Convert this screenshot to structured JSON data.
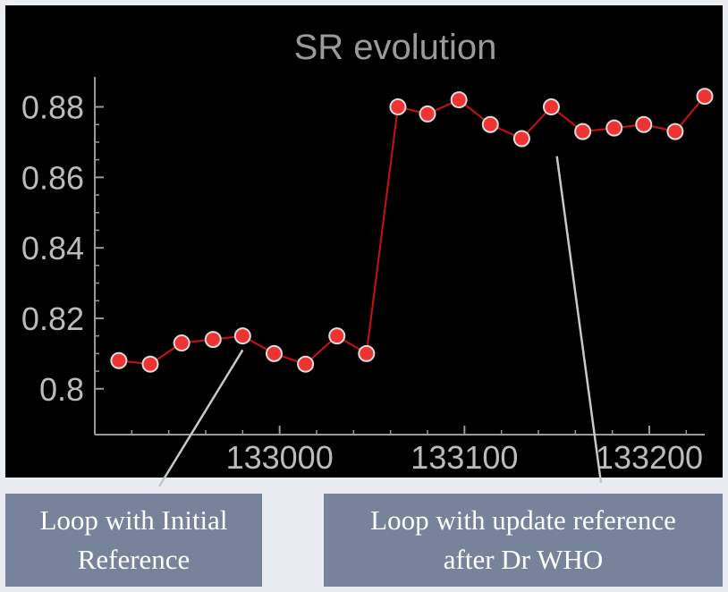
{
  "chart_data": {
    "type": "line",
    "title": "SR evolution",
    "xlabel": "",
    "ylabel": "",
    "x_ticks": [
      133000,
      133100,
      133200
    ],
    "y_ticks": [
      "0.8",
      "0.82",
      "0.84",
      "0.86",
      "0.88"
    ],
    "xlim": [
      132900,
      133230
    ],
    "ylim": [
      0.787,
      0.888
    ],
    "grid": false,
    "colors": {
      "background": "#000000",
      "line": "#cc1111",
      "marker": "#ee3333",
      "marker_edge": "#dddddd",
      "axis": "#999999",
      "text": "#bbbbbb"
    },
    "series": [
      {
        "x": [
          132913,
          132930,
          132947,
          132964,
          132980,
          132997,
          133014,
          133031,
          133047,
          133064,
          133080,
          133097,
          133114,
          133131,
          133147,
          133164,
          133181,
          133197,
          133214
        ],
        "y": [
          0.808,
          0.807,
          0.813,
          0.814,
          0.815,
          0.81,
          0.807,
          0.815,
          0.81,
          0.88,
          0.878,
          0.882,
          0.875,
          0.871,
          0.88,
          0.873,
          0.874,
          0.875,
          0.873
        ]
      },
      {
        "x": [
          133230
        ],
        "y": [
          0.883
        ]
      }
    ],
    "annotations": [
      {
        "text": "Loop with Initial Reference",
        "lines": [
          "Loop with Initial",
          "Reference"
        ],
        "points_to_x": 132980,
        "points_to_y": 0.811
      },
      {
        "text": "Loop with update reference after Dr WHO",
        "lines": [
          "Loop with update reference",
          "after Dr WHO"
        ],
        "points_to_x": 133150,
        "points_to_y": 0.866
      }
    ]
  }
}
